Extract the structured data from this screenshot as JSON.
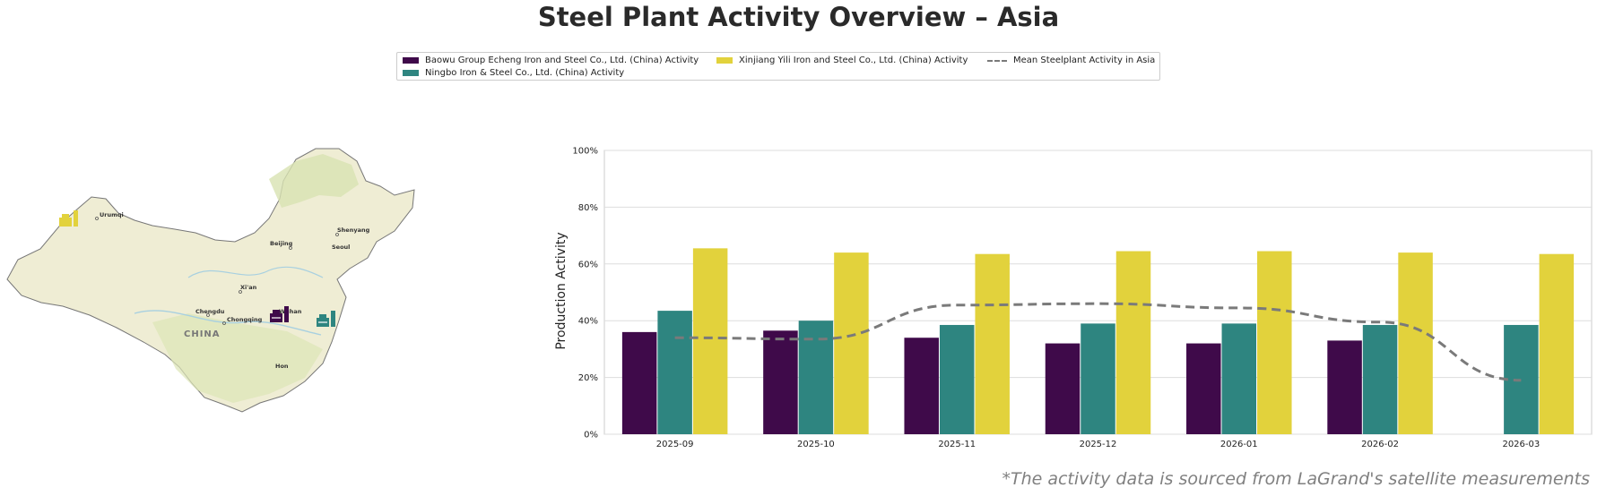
{
  "title": "Steel Plant Activity Overview – Asia",
  "footnote": "*The activity data is sourced from LaGrand's satellite measurements",
  "legend": [
    {
      "label": "Baowu Group Echeng Iron and Steel Co., Ltd. (China) Activity",
      "color": "#3f0a4a",
      "kind": "bar"
    },
    {
      "label": "Ningbo Iron & Steel Co., Ltd. (China) Activity",
      "color": "#2e8580",
      "kind": "bar"
    },
    {
      "label": "Xinjiang Yili Iron and Steel Co., Ltd. (China) Activity",
      "color": "#e2d23c",
      "kind": "bar"
    },
    {
      "label": "Mean Steelplant Activity in Asia",
      "color": "#7a7a7a",
      "kind": "dashed-line"
    }
  ],
  "map": {
    "country_label": "CHINA",
    "cities": [
      "Urumqi",
      "Beijing",
      "Shenyang",
      "Xi'an",
      "Chengdu",
      "Chongqing",
      "Wuhan",
      "Seoul",
      "Hon"
    ],
    "markers": [
      {
        "icon": "factory-icon",
        "plant": "Xinjiang Yili",
        "color": "#e2d23c"
      },
      {
        "icon": "factory-icon",
        "plant": "Baowu Group Echeng",
        "color": "#3f0a4a"
      },
      {
        "icon": "factory-icon",
        "plant": "Ningbo",
        "color": "#2e8580"
      }
    ]
  },
  "chart_data": {
    "type": "bar",
    "ylabel": "Production Activity",
    "xlabel": "",
    "ylim": [
      0,
      100
    ],
    "yticks": [
      "0%",
      "20%",
      "40%",
      "60%",
      "80%",
      "100%"
    ],
    "grid": true,
    "legend_position": "top",
    "categories": [
      "2025-09",
      "2025-10",
      "2025-11",
      "2025-12",
      "2026-01",
      "2026-02",
      "2026-03"
    ],
    "series": [
      {
        "name": "Baowu Group Echeng Iron and Steel Co., Ltd. (China) Activity",
        "color": "#3f0a4a",
        "values": [
          36,
          36.5,
          34,
          32,
          32,
          33,
          null
        ]
      },
      {
        "name": "Ningbo Iron & Steel Co., Ltd. (China) Activity",
        "color": "#2e8580",
        "values": [
          43.5,
          40,
          38.5,
          39,
          39,
          38.5,
          38.5
        ]
      },
      {
        "name": "Xinjiang Yili Iron and Steel Co., Ltd. (China) Activity",
        "color": "#e2d23c",
        "values": [
          65.5,
          64,
          63.5,
          64.5,
          64.5,
          64,
          63.5
        ]
      }
    ],
    "line": {
      "name": "Mean Steelplant Activity in Asia",
      "color": "#7a7a7a",
      "values": [
        34,
        33.5,
        45.5,
        46,
        44.5,
        39.5,
        19
      ]
    }
  }
}
